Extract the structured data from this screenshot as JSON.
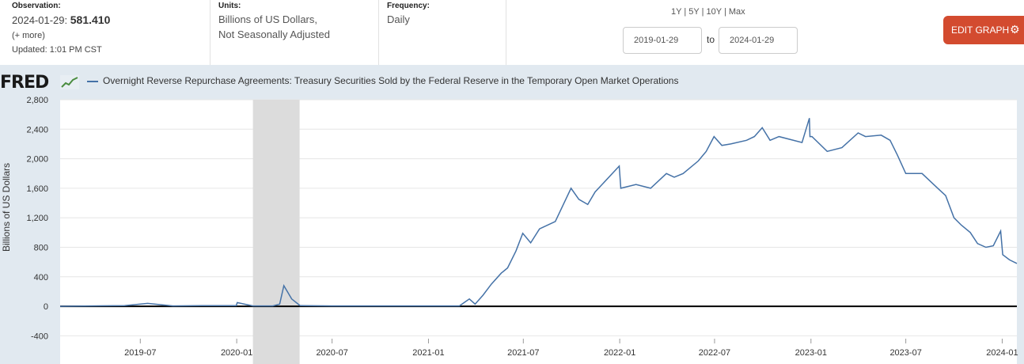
{
  "observation": {
    "label": "Observation:",
    "date": "2024-01-29:",
    "value": "581.410",
    "more": "(+ more)",
    "updated": "Updated: 1:01 PM CST"
  },
  "units": {
    "label": "Units:",
    "line1": "Billions of US Dollars,",
    "line2": "Not Seasonally Adjusted"
  },
  "frequency": {
    "label": "Frequency:",
    "value": "Daily"
  },
  "range": {
    "links": [
      "1Y",
      "5Y",
      "10Y",
      "Max"
    ],
    "separator": "|",
    "start": "2019-01-29",
    "to_label": "to",
    "end": "2024-01-29"
  },
  "edit_button": {
    "label": "EDIT GRAPH",
    "icon": "gear-icon"
  },
  "logo": {
    "text": "FRED"
  },
  "colors": {
    "series": "#4572a7",
    "recession": "#dcdcdc",
    "button": "#d34b2f",
    "chart_background": "#e1e9f0"
  },
  "chart_data": {
    "type": "line",
    "title": "Overnight Reverse Repurchase Agreements: Treasury Securities Sold by the Federal Reserve in the Temporary Open Market Operations",
    "ylabel": "Billions of US Dollars",
    "xlabel": "",
    "xlim": [
      "2019-01-29",
      "2024-01-29"
    ],
    "ylim": [
      -400,
      2800
    ],
    "yticks": [
      2800,
      2400,
      2000,
      1600,
      1200,
      800,
      400,
      0,
      -400
    ],
    "ytick_labels": [
      "2,800",
      "2,400",
      "2,000",
      "1,600",
      "1,200",
      "800",
      "400",
      "0",
      "-400"
    ],
    "xticks": [
      "2019-07-01",
      "2020-01-01",
      "2020-07-01",
      "2021-01-01",
      "2021-07-01",
      "2022-01-01",
      "2022-07-01",
      "2023-01-01",
      "2023-07-01",
      "2024-01-01"
    ],
    "xtick_labels": [
      "2019-07",
      "2020-01",
      "2020-07",
      "2021-01",
      "2021-07",
      "2022-01",
      "2022-07",
      "2023-01",
      "2023-07",
      "2024-01"
    ],
    "recession": {
      "start": "2020-02-01",
      "end": "2020-04-30"
    },
    "grid": true,
    "series": [
      {
        "name": "Overnight Reverse Repurchase Agreements: Treasury Securities Sold by the Federal Reserve in the Temporary Open Market Operations",
        "x": [
          "2019-01-29",
          "2019-04-01",
          "2019-06-01",
          "2019-07-15",
          "2019-09-01",
          "2019-11-01",
          "2019-12-31",
          "2020-01-02",
          "2020-02-01",
          "2020-03-10",
          "2020-03-23",
          "2020-03-31",
          "2020-04-15",
          "2020-05-01",
          "2020-07-01",
          "2020-10-01",
          "2021-01-04",
          "2021-03-01",
          "2021-03-20",
          "2021-03-31",
          "2021-04-15",
          "2021-05-01",
          "2021-05-20",
          "2021-06-01",
          "2021-06-17",
          "2021-06-30",
          "2021-07-15",
          "2021-08-01",
          "2021-08-31",
          "2021-09-30",
          "2021-10-15",
          "2021-11-01",
          "2021-11-15",
          "2021-12-31",
          "2022-01-03",
          "2022-02-01",
          "2022-03-01",
          "2022-03-31",
          "2022-04-15",
          "2022-05-02",
          "2022-05-31",
          "2022-06-15",
          "2022-06-30",
          "2022-07-15",
          "2022-08-01",
          "2022-08-31",
          "2022-09-15",
          "2022-09-30",
          "2022-10-15",
          "2022-11-01",
          "2022-12-15",
          "2022-12-29",
          "2022-12-30",
          "2023-01-03",
          "2023-02-01",
          "2023-03-01",
          "2023-04-01",
          "2023-04-15",
          "2023-05-15",
          "2023-06-01",
          "2023-06-15",
          "2023-07-01",
          "2023-07-15",
          "2023-08-01",
          "2023-08-31",
          "2023-09-15",
          "2023-10-01",
          "2023-10-15",
          "2023-11-01",
          "2023-11-15",
          "2023-12-01",
          "2023-12-15",
          "2023-12-29",
          "2024-01-02",
          "2024-01-15",
          "2024-01-29"
        ],
        "values": [
          0,
          5,
          10,
          40,
          5,
          10,
          10,
          50,
          5,
          5,
          30,
          280,
          100,
          10,
          5,
          5,
          5,
          5,
          100,
          30,
          150,
          300,
          450,
          520,
          750,
          990,
          860,
          1050,
          1150,
          1600,
          1450,
          1380,
          1550,
          1900,
          1600,
          1650,
          1600,
          1800,
          1750,
          1800,
          1970,
          2100,
          2300,
          2180,
          2200,
          2250,
          2300,
          2420,
          2250,
          2300,
          2220,
          2550,
          2300,
          2300,
          2100,
          2150,
          2350,
          2300,
          2320,
          2250,
          2050,
          1800,
          1800,
          1800,
          1600,
          1500,
          1200,
          1100,
          1000,
          850,
          800,
          820,
          1020,
          700,
          630,
          581.41
        ]
      }
    ]
  }
}
